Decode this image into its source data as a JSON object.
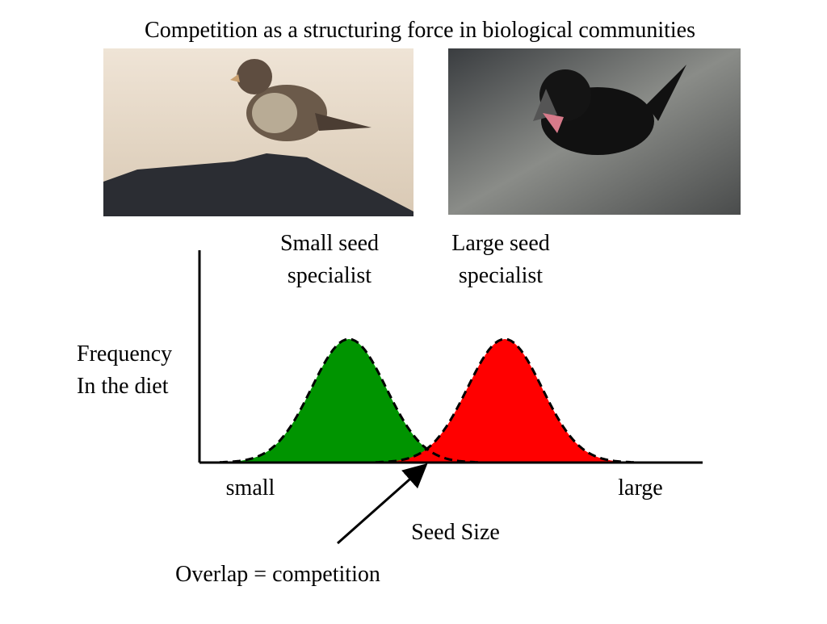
{
  "title": "Competition as a structuring force in biological communities",
  "species": [
    {
      "label_lines": [
        "Small seed",
        "specialist"
      ]
    },
    {
      "label_lines": [
        "Large seed",
        "specialist"
      ]
    }
  ],
  "y_axis": {
    "label_lines": [
      "Frequency",
      "In the diet"
    ]
  },
  "x_axis": {
    "label": "Seed Size",
    "min_label": "small",
    "max_label": "large"
  },
  "annotation": "Overlap = competition"
}
